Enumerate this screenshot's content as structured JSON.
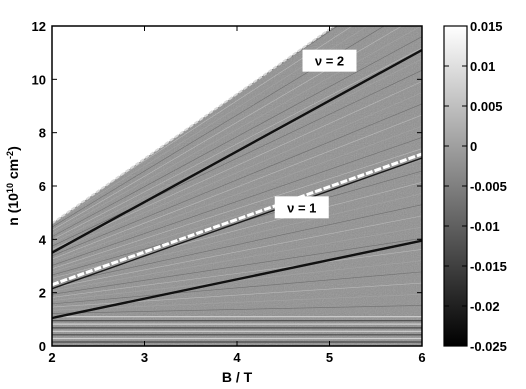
{
  "chart_data": {
    "type": "heatmap",
    "xlabel": "B / T",
    "ylabel": "n (10",
    "ylabel_exp": "10",
    "ylabel_unit": " cm",
    "ylabel_unit_exp": "-2",
    "ylabel_close": ")",
    "xlim": [
      2,
      6
    ],
    "ylim": [
      0,
      12
    ],
    "xticks": [
      2,
      3,
      4,
      5,
      6
    ],
    "xtick_labels": [
      "2",
      "3",
      "4",
      "5",
      "6"
    ],
    "yticks": [
      0,
      2,
      4,
      6,
      8,
      10,
      12
    ],
    "ytick_labels": [
      "0",
      "2",
      "4",
      "6",
      "8",
      "10",
      "12"
    ],
    "colorbar": {
      "range": [
        -0.025,
        0.015
      ],
      "ticks": [
        0.015,
        0.01,
        0.005,
        0,
        -0.005,
        -0.01,
        -0.015,
        -0.02,
        -0.025
      ],
      "tick_labels": [
        "0.015",
        "0.01",
        "0.005",
        "0",
        "-0.005",
        "-0.01",
        "-0.015",
        "-0.02",
        "-0.025"
      ],
      "colormap": "gray"
    },
    "annotations": [
      {
        "text": "ν = 2",
        "x": 5.0,
        "y": 10.7
      },
      {
        "text": "ν = 1",
        "x": 4.7,
        "y": 5.2
      }
    ],
    "features": {
      "upper_edge": {
        "x": [
          2,
          5.05
        ],
        "y": [
          4.6,
          12
        ]
      },
      "nu1_white_line": {
        "x": [
          2,
          6
        ],
        "y": [
          2.3,
          7.2
        ]
      },
      "nu1_dark_line": {
        "x": [
          2,
          6
        ],
        "y": [
          1.05,
          3.95
        ]
      },
      "nu2_dark_line": {
        "x": [
          2,
          6
        ],
        "y": [
          3.5,
          11.1
        ]
      },
      "horizontal_bands_y": [
        0.15,
        0.28,
        0.42,
        0.55,
        0.68,
        0.82,
        0.95,
        1.1
      ]
    },
    "colors": {
      "background_gray": "#8f8f8f",
      "dark_line": "#111111",
      "white_line": "#ffffff",
      "frame": "#000000"
    }
  }
}
